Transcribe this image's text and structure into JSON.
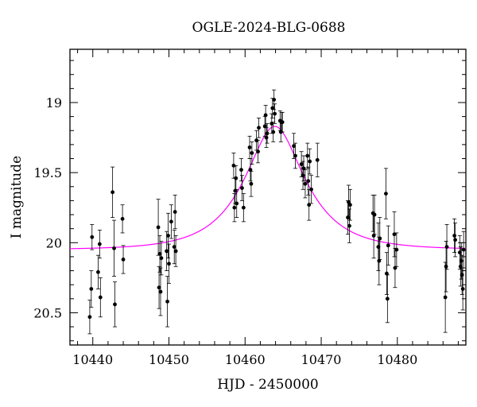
{
  "chart_data": {
    "type": "scatter",
    "title": "OGLE-2024-BLG-0688",
    "xlabel": "HJD - 2450000",
    "ylabel": "I magnitude",
    "xlim": [
      10437,
      10489
    ],
    "ylim": [
      20.73,
      18.62
    ],
    "y_inverted": true,
    "grid": false,
    "x_ticks": [
      10440,
      10450,
      10460,
      10470,
      10480
    ],
    "x_tick_labels": [
      "10440",
      "10450",
      "10460",
      "10470",
      "10480"
    ],
    "y_ticks": [
      19,
      19.5,
      20,
      20.5
    ],
    "y_tick_labels": [
      "19",
      "19.5",
      "20",
      "20.5"
    ],
    "colors": {
      "points": "#000000",
      "model": "#ff00ff"
    },
    "series": [
      {
        "kind": "points_with_errorbars",
        "points": [
          [
            10439.6,
            20.53,
            0.12
          ],
          [
            10439.8,
            20.33,
            0.13
          ],
          [
            10439.9,
            19.96,
            0.09
          ],
          [
            10440.7,
            20.21,
            0.12
          ],
          [
            10440.9,
            20.01,
            0.1
          ],
          [
            10441.0,
            20.39,
            0.14
          ],
          [
            10442.6,
            19.64,
            0.18
          ],
          [
            10442.8,
            20.04,
            0.2
          ],
          [
            10442.9,
            20.44,
            0.16
          ],
          [
            10443.9,
            19.83,
            0.1
          ],
          [
            10444.0,
            20.12,
            0.1
          ],
          [
            10448.6,
            19.89,
            0.2
          ],
          [
            10448.7,
            20.32,
            0.15
          ],
          [
            10448.8,
            20.08,
            0.13
          ],
          [
            10448.9,
            20.35,
            0.17
          ],
          [
            10449.0,
            20.11,
            0.12
          ],
          [
            10449.7,
            20.06,
            0.14
          ],
          [
            10449.8,
            20.42,
            0.18
          ],
          [
            10449.9,
            19.95,
            0.16
          ],
          [
            10450.0,
            20.15,
            0.14
          ],
          [
            10450.3,
            19.85,
            0.12
          ],
          [
            10450.7,
            20.03,
            0.12
          ],
          [
            10450.8,
            19.78,
            0.12
          ],
          [
            10450.9,
            20.06,
            0.11
          ],
          [
            10458.5,
            19.45,
            0.09
          ],
          [
            10458.6,
            19.75,
            0.1
          ],
          [
            10458.7,
            19.63,
            0.09
          ],
          [
            10458.8,
            19.54,
            0.09
          ],
          [
            10458.9,
            19.72,
            0.1
          ],
          [
            10459.5,
            19.48,
            0.08
          ],
          [
            10459.6,
            19.61,
            0.09
          ],
          [
            10459.8,
            19.75,
            0.1
          ],
          [
            10460.6,
            19.32,
            0.08
          ],
          [
            10460.7,
            19.48,
            0.08
          ],
          [
            10460.8,
            19.58,
            0.09
          ],
          [
            10460.9,
            19.36,
            0.08
          ],
          [
            10461.5,
            19.27,
            0.07
          ],
          [
            10461.7,
            19.35,
            0.08
          ],
          [
            10461.8,
            19.18,
            0.07
          ],
          [
            10462.6,
            19.17,
            0.07
          ],
          [
            10462.7,
            19.09,
            0.07
          ],
          [
            10462.8,
            19.25,
            0.07
          ],
          [
            10462.9,
            19.22,
            0.07
          ],
          [
            10463.5,
            19.15,
            0.07
          ],
          [
            10463.6,
            19.04,
            0.07
          ],
          [
            10463.7,
            19.21,
            0.07
          ],
          [
            10463.8,
            18.98,
            0.07
          ],
          [
            10463.9,
            19.08,
            0.07
          ],
          [
            10464.6,
            19.13,
            0.07
          ],
          [
            10464.7,
            19.21,
            0.07
          ],
          [
            10464.8,
            19.14,
            0.07
          ],
          [
            10464.9,
            19.14,
            0.07
          ],
          [
            10466.4,
            19.31,
            0.09
          ],
          [
            10466.6,
            19.38,
            0.09
          ],
          [
            10467.4,
            19.44,
            0.09
          ],
          [
            10467.6,
            19.52,
            0.1
          ],
          [
            10467.7,
            19.47,
            0.09
          ],
          [
            10467.9,
            19.58,
            0.1
          ],
          [
            10468.2,
            19.38,
            0.09
          ],
          [
            10468.3,
            19.56,
            0.1
          ],
          [
            10468.4,
            19.73,
            0.11
          ],
          [
            10468.5,
            19.42,
            0.09
          ],
          [
            10468.7,
            19.62,
            0.1
          ],
          [
            10469.5,
            19.41,
            0.12
          ],
          [
            10473.5,
            19.82,
            0.12
          ],
          [
            10473.6,
            19.71,
            0.12
          ],
          [
            10473.7,
            19.88,
            0.12
          ],
          [
            10473.8,
            19.73,
            0.11
          ],
          [
            10476.8,
            19.79,
            0.13
          ],
          [
            10476.9,
            19.95,
            0.16
          ],
          [
            10477.0,
            19.8,
            0.14
          ],
          [
            10477.5,
            20.03,
            0.17
          ],
          [
            10477.6,
            20.13,
            0.17
          ],
          [
            10477.7,
            19.97,
            0.15
          ],
          [
            10478.5,
            19.65,
            0.18
          ],
          [
            10478.6,
            20.22,
            0.15
          ],
          [
            10478.7,
            20.4,
            0.17
          ],
          [
            10478.8,
            20.02,
            0.14
          ],
          [
            10479.6,
            19.94,
            0.16
          ],
          [
            10479.7,
            20.18,
            0.14
          ],
          [
            10479.9,
            20.05,
            0.12
          ],
          [
            10486.3,
            20.39,
            0.25
          ],
          [
            10486.4,
            20.17,
            0.18
          ],
          [
            10486.5,
            20.03,
            0.16
          ],
          [
            10487.5,
            19.95,
            0.12
          ],
          [
            10487.6,
            19.98,
            0.12
          ],
          [
            10488.2,
            20.07,
            0.12
          ],
          [
            10488.3,
            20.17,
            0.14
          ],
          [
            10488.4,
            20.13,
            0.13
          ],
          [
            10488.5,
            20.23,
            0.14
          ],
          [
            10488.6,
            20.33,
            0.15
          ],
          [
            10488.7,
            20.05,
            0.13
          ]
        ]
      },
      {
        "kind": "model_curve",
        "x_start": 10437,
        "x_end": 10489,
        "peak_x": 10463.9,
        "peak_mag": 19.17,
        "baseline_mag": 20.05,
        "tE": 6.9
      }
    ]
  }
}
